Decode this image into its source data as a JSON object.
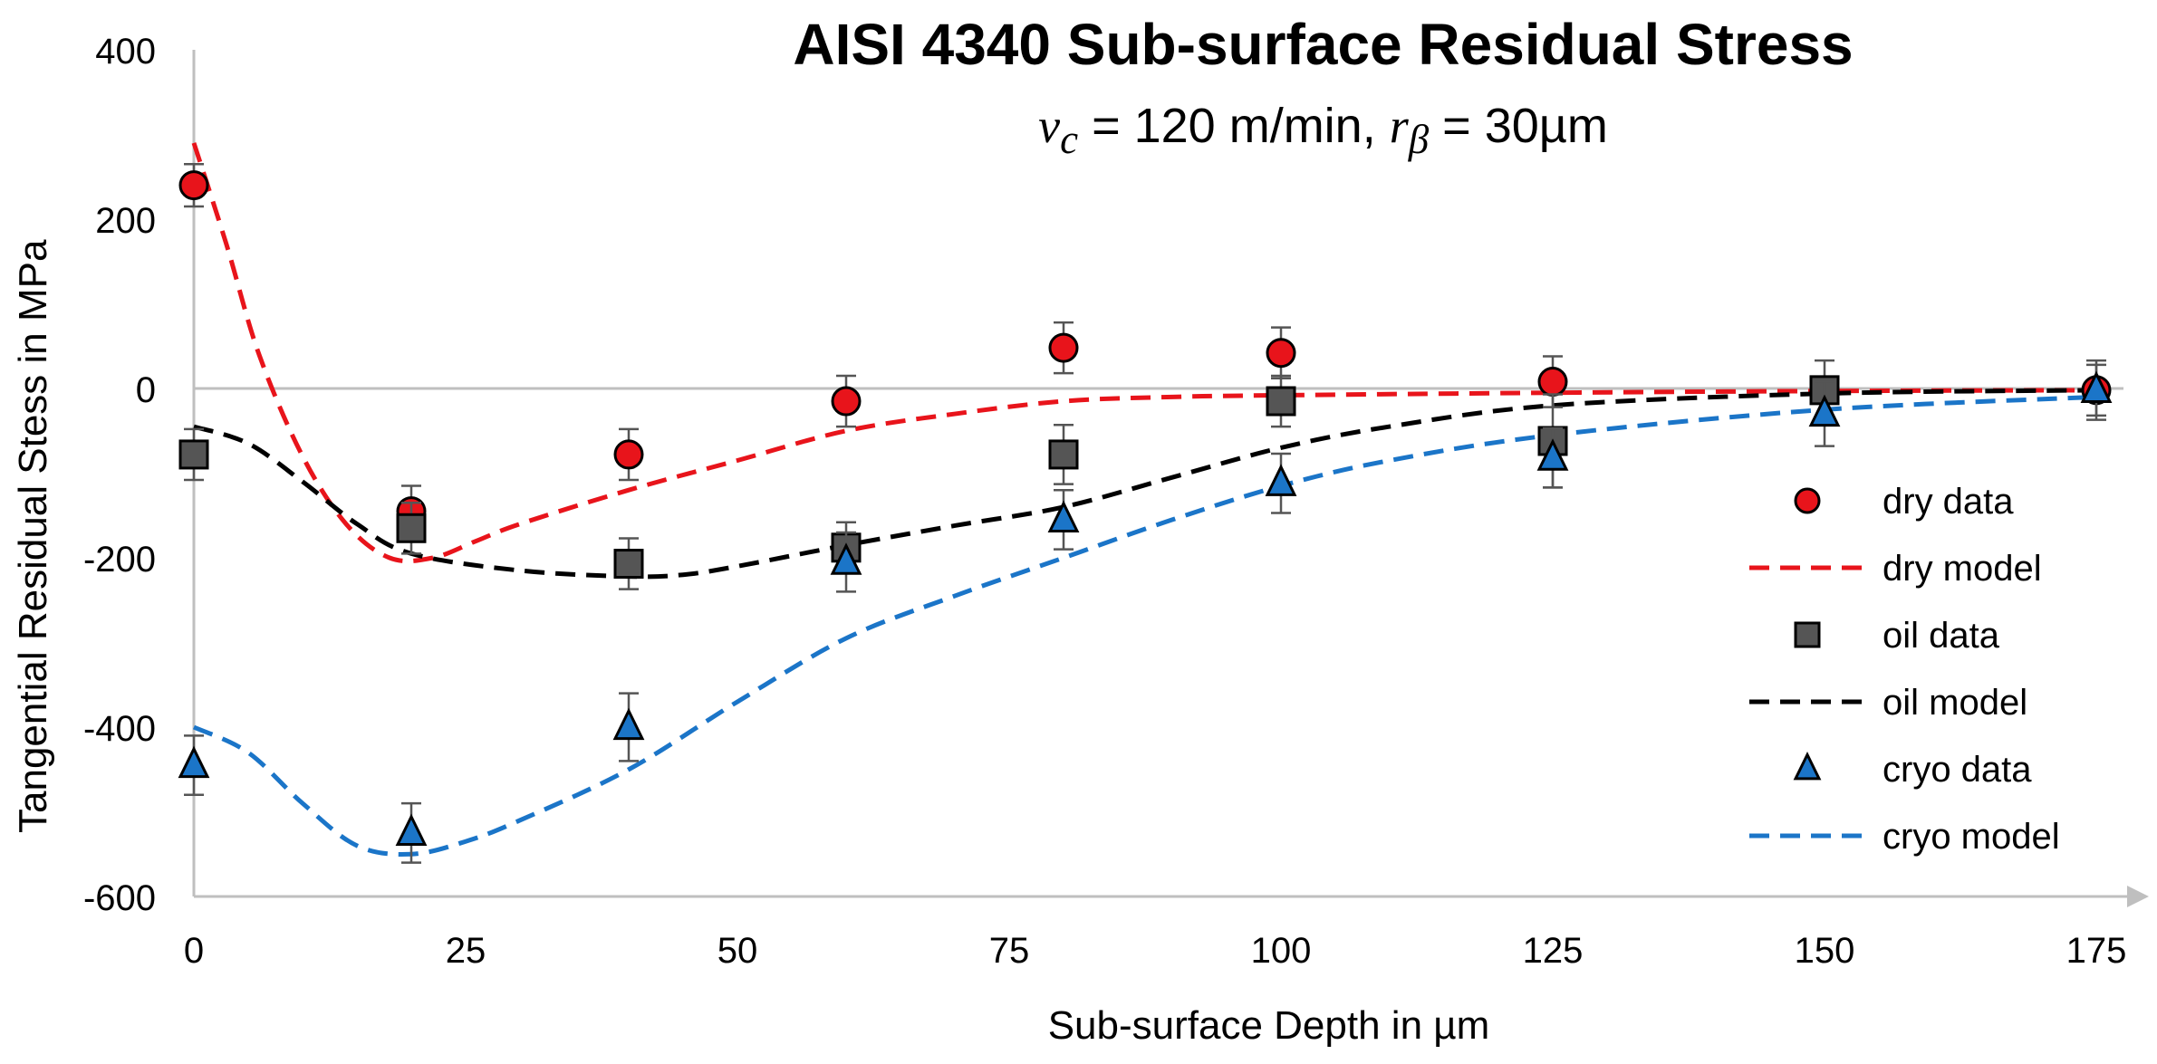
{
  "chart_data": {
    "type": "scatter",
    "title": "AISI 4340 Sub-surface Residual Stress",
    "subtitle": {
      "v_symbol": "v",
      "v_sub": "c",
      "v_text": " = 120 m/min, ",
      "r_symbol": "r",
      "r_sub": "β",
      "r_text": " = 30µm"
    },
    "xlabel": "Sub-surface Depth in µm",
    "ylabel": "Tangential Residual Stess in MPa",
    "xlim": [
      0,
      175
    ],
    "ylim": [
      -600,
      400
    ],
    "xticks": [
      0,
      25,
      50,
      75,
      100,
      125,
      150,
      175
    ],
    "yticks": [
      -600,
      -400,
      -200,
      0,
      200,
      400
    ],
    "legend_position": "right",
    "series": [
      {
        "name": "dry data",
        "kind": "markers",
        "marker": "circle",
        "color": "#e8141b",
        "x": [
          0,
          20,
          40,
          60,
          80,
          100,
          125,
          175
        ],
        "y": [
          240,
          -145,
          -78,
          -15,
          48,
          42,
          8,
          -2
        ],
        "err": [
          25,
          30,
          30,
          30,
          30,
          30,
          30,
          30
        ]
      },
      {
        "name": "dry model",
        "kind": "dashed",
        "color": "#e8141b",
        "x": [
          0,
          3,
          6,
          10,
          14,
          18,
          22,
          26,
          30,
          40,
          50,
          60,
          70,
          80,
          90,
          100,
          125,
          150,
          175
        ],
        "y": [
          290,
          170,
          40,
          -80,
          -160,
          -200,
          -200,
          -180,
          -160,
          -120,
          -85,
          -50,
          -30,
          -15,
          -10,
          -8,
          -5,
          -3,
          -2
        ]
      },
      {
        "name": "oil data",
        "kind": "markers",
        "marker": "square",
        "color": "#555555",
        "x": [
          0,
          20,
          40,
          60,
          80,
          100,
          125,
          150
        ],
        "y": [
          -78,
          -165,
          -207,
          -188,
          -78,
          -15,
          -62,
          -2
        ],
        "err": [
          30,
          30,
          30,
          30,
          35,
          30,
          55,
          35
        ]
      },
      {
        "name": "oil model",
        "kind": "dashed",
        "color": "#000000",
        "x": [
          0,
          5,
          10,
          15,
          20,
          30,
          40,
          45,
          50,
          60,
          70,
          80,
          90,
          100,
          110,
          125,
          150,
          175
        ],
        "y": [
          -45,
          -65,
          -110,
          -160,
          -195,
          -215,
          -222,
          -220,
          -210,
          -185,
          -162,
          -140,
          -105,
          -70,
          -45,
          -20,
          -6,
          -2
        ]
      },
      {
        "name": "cryo data",
        "kind": "markers",
        "marker": "triangle",
        "color": "#1b75c8",
        "x": [
          0,
          20,
          40,
          60,
          80,
          100,
          125,
          150,
          175
        ],
        "y": [
          -445,
          -525,
          -400,
          -205,
          -155,
          -112,
          -82,
          -30,
          -2
        ],
        "err": [
          35,
          35,
          40,
          35,
          35,
          35,
          35,
          38,
          35
        ]
      },
      {
        "name": "cryo model",
        "kind": "dashed",
        "color": "#1b75c8",
        "x": [
          0,
          5,
          10,
          15,
          20,
          25,
          30,
          40,
          50,
          60,
          70,
          80,
          90,
          100,
          110,
          125,
          150,
          175
        ],
        "y": [
          -400,
          -430,
          -490,
          -540,
          -550,
          -535,
          -510,
          -450,
          -370,
          -295,
          -245,
          -200,
          -155,
          -115,
          -85,
          -55,
          -25,
          -10
        ]
      }
    ]
  }
}
